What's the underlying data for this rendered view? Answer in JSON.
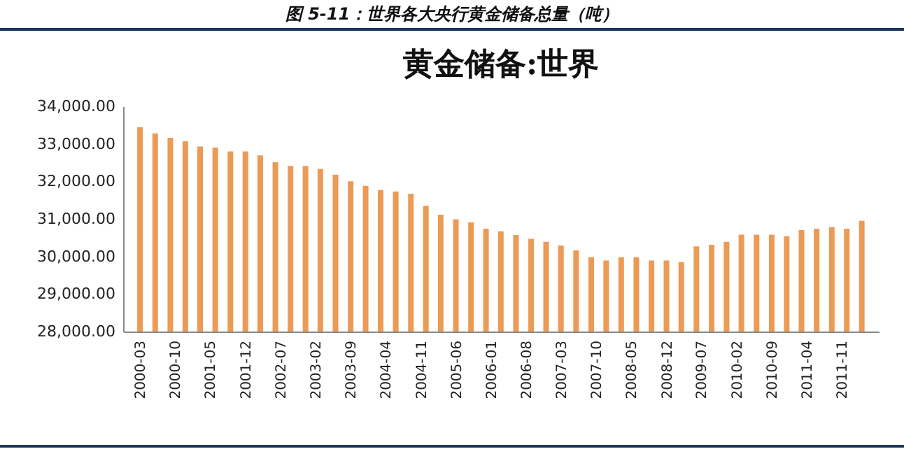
{
  "chart_data": {
    "type": "bar",
    "title": "黄金储备:世界",
    "annotations": [
      "图 5-11：世界各大央行黄金储备总量（吨）"
    ],
    "x": [
      "2000-03",
      "2000-06",
      "2000-09",
      "2000-12",
      "2001-03",
      "2001-06",
      "2001-09",
      "2001-12",
      "2002-03",
      "2002-06",
      "2002-09",
      "2002-12",
      "2003-03",
      "2003-06",
      "2003-09",
      "2003-12",
      "2004-03",
      "2004-06",
      "2004-09",
      "2004-12",
      "2005-03",
      "2005-06",
      "2005-09",
      "2005-12",
      "2006-03",
      "2006-06",
      "2006-09",
      "2006-12",
      "2007-03",
      "2007-06",
      "2007-09",
      "2007-12",
      "2008-03",
      "2008-06",
      "2008-09",
      "2008-12",
      "2009-03",
      "2009-06",
      "2009-09",
      "2009-12",
      "2010-03",
      "2010-06",
      "2010-09",
      "2010-12",
      "2011-03",
      "2011-06",
      "2011-09",
      "2011-12",
      "2012-03"
    ],
    "series": [
      {
        "color": "#eb9b55",
        "values": [
          33440,
          33280,
          33160,
          33070,
          32930,
          32900,
          32800,
          32800,
          32690,
          32510,
          32410,
          32410,
          32330,
          32180,
          32000,
          31880,
          31770,
          31730,
          31670,
          31350,
          31110,
          30990,
          30910,
          30740,
          30670,
          30570,
          30470,
          30390,
          30290,
          30160,
          29980,
          29890,
          29980,
          29980,
          29890,
          29890,
          29850,
          30270,
          30310,
          30390,
          30580,
          30580,
          30580,
          30540,
          30700,
          30740,
          30780,
          30740,
          30950
        ]
      }
    ],
    "xlim": [
      "2000-01",
      "2012-05"
    ],
    "xticks": [
      "2000-03",
      "2000-10",
      "2001-05",
      "2001-12",
      "2002-07",
      "2003-02",
      "2003-09",
      "2004-04",
      "2004-11",
      "2005-06",
      "2006-01",
      "2006-08",
      "2007-03",
      "2007-10",
      "2008-05",
      "2008-12",
      "2009-07",
      "2010-02",
      "2010-09",
      "2011-04",
      "2011-11"
    ],
    "ylim": [
      28000,
      34000
    ],
    "yticks": [
      {
        "value": 28000,
        "label": "28,000.00"
      },
      {
        "value": 29000,
        "label": "29,000.00"
      },
      {
        "value": 30000,
        "label": "30,000.00"
      },
      {
        "value": 31000,
        "label": "31,000.00"
      },
      {
        "value": 32000,
        "label": "32,000.00"
      },
      {
        "value": 33000,
        "label": "33,000.00"
      },
      {
        "value": 34000,
        "label": "34,000.00"
      }
    ],
    "grid": false,
    "legend": false
  }
}
